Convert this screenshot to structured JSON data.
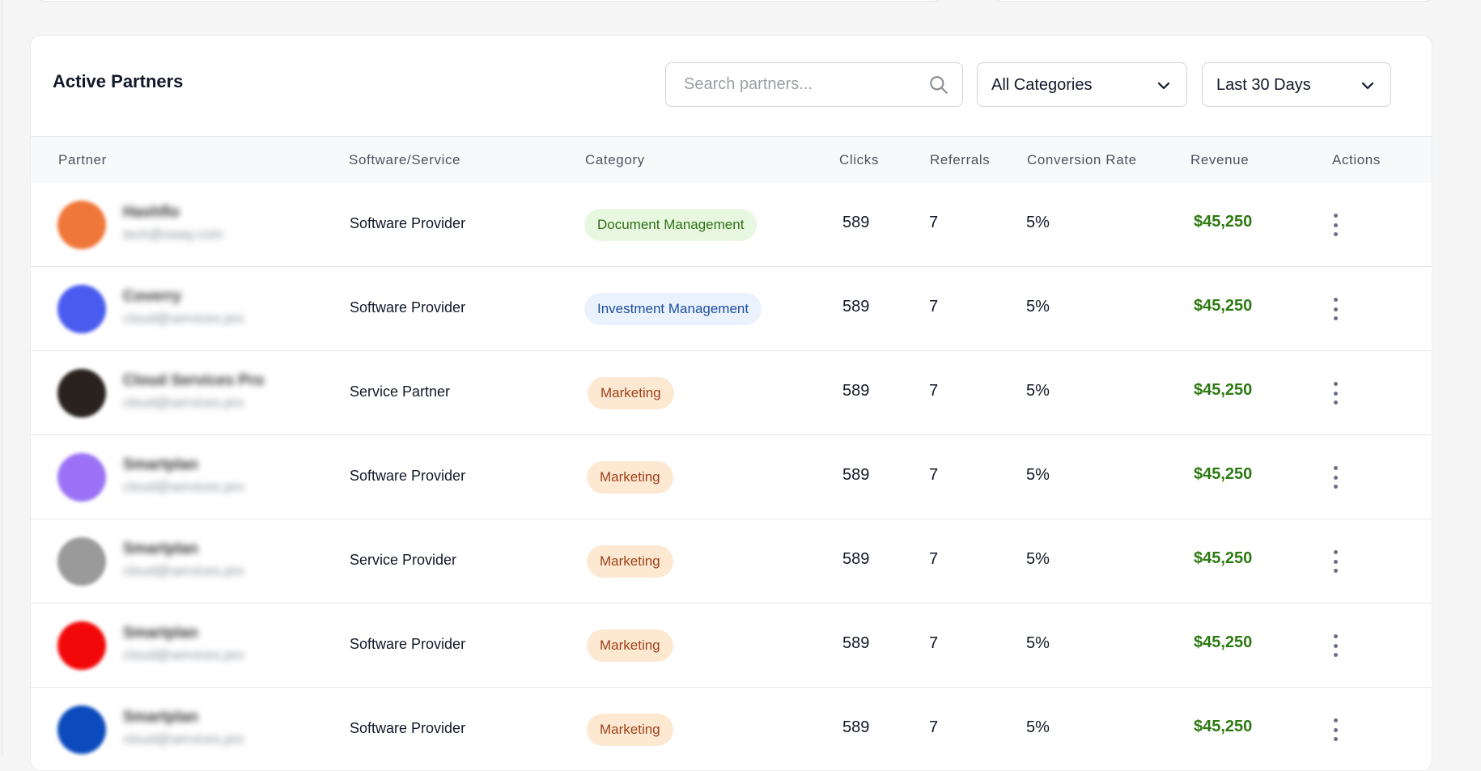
{
  "header": {
    "title": "Active Partners",
    "search_placeholder": "Search partners...",
    "category_select": "All Categories",
    "date_select": "Last 30 Days"
  },
  "columns": [
    "Partner",
    "Software/Service",
    "Category",
    "Clicks",
    "Referrals",
    "Conversion Rate",
    "Revenue",
    "Actions"
  ],
  "rows": [
    {
      "name": "Hashflo",
      "email": "tech@sway.com",
      "avatar_color": "#f0773a",
      "service": "Software Provider",
      "category": "Document Management",
      "badge": "green",
      "clicks": "589",
      "referrals": "7",
      "conversion": "5%",
      "revenue": "$45,250"
    },
    {
      "name": "Coverry",
      "email": "cloud@services.pro",
      "avatar_color": "#4a5cf0",
      "service": "Software Provider",
      "category": "Investment Management",
      "badge": "blue",
      "clicks": "589",
      "referrals": "7",
      "conversion": "5%",
      "revenue": "$45,250"
    },
    {
      "name": "Cloud Services Pro",
      "email": "cloud@services.pro",
      "avatar_color": "#2a221e",
      "service": "Service Partner",
      "category": "Marketing",
      "badge": "orange",
      "clicks": "589",
      "referrals": "7",
      "conversion": "5%",
      "revenue": "$45,250"
    },
    {
      "name": "Smartplan",
      "email": "cloud@services.pro",
      "avatar_color": "#9b72f5",
      "service": "Software Provider",
      "category": "Marketing",
      "badge": "orange",
      "clicks": "589",
      "referrals": "7",
      "conversion": "5%",
      "revenue": "$45,250"
    },
    {
      "name": "Smartplan",
      "email": "cloud@services.pro",
      "avatar_color": "#9a9a9a",
      "service": "Service Provider",
      "category": "Marketing",
      "badge": "orange",
      "clicks": "589",
      "referrals": "7",
      "conversion": "5%",
      "revenue": "$45,250"
    },
    {
      "name": "Smartplan",
      "email": "cloud@services.pro",
      "avatar_color": "#f20808",
      "service": "Software Provider",
      "category": "Marketing",
      "badge": "orange",
      "clicks": "589",
      "referrals": "7",
      "conversion": "5%",
      "revenue": "$45,250"
    },
    {
      "name": "Smartplan",
      "email": "cloud@services.pro",
      "avatar_color": "#0b4bbd",
      "service": "Software Provider",
      "category": "Marketing",
      "badge": "orange",
      "clicks": "589",
      "referrals": "7",
      "conversion": "5%",
      "revenue": "$45,250"
    }
  ]
}
